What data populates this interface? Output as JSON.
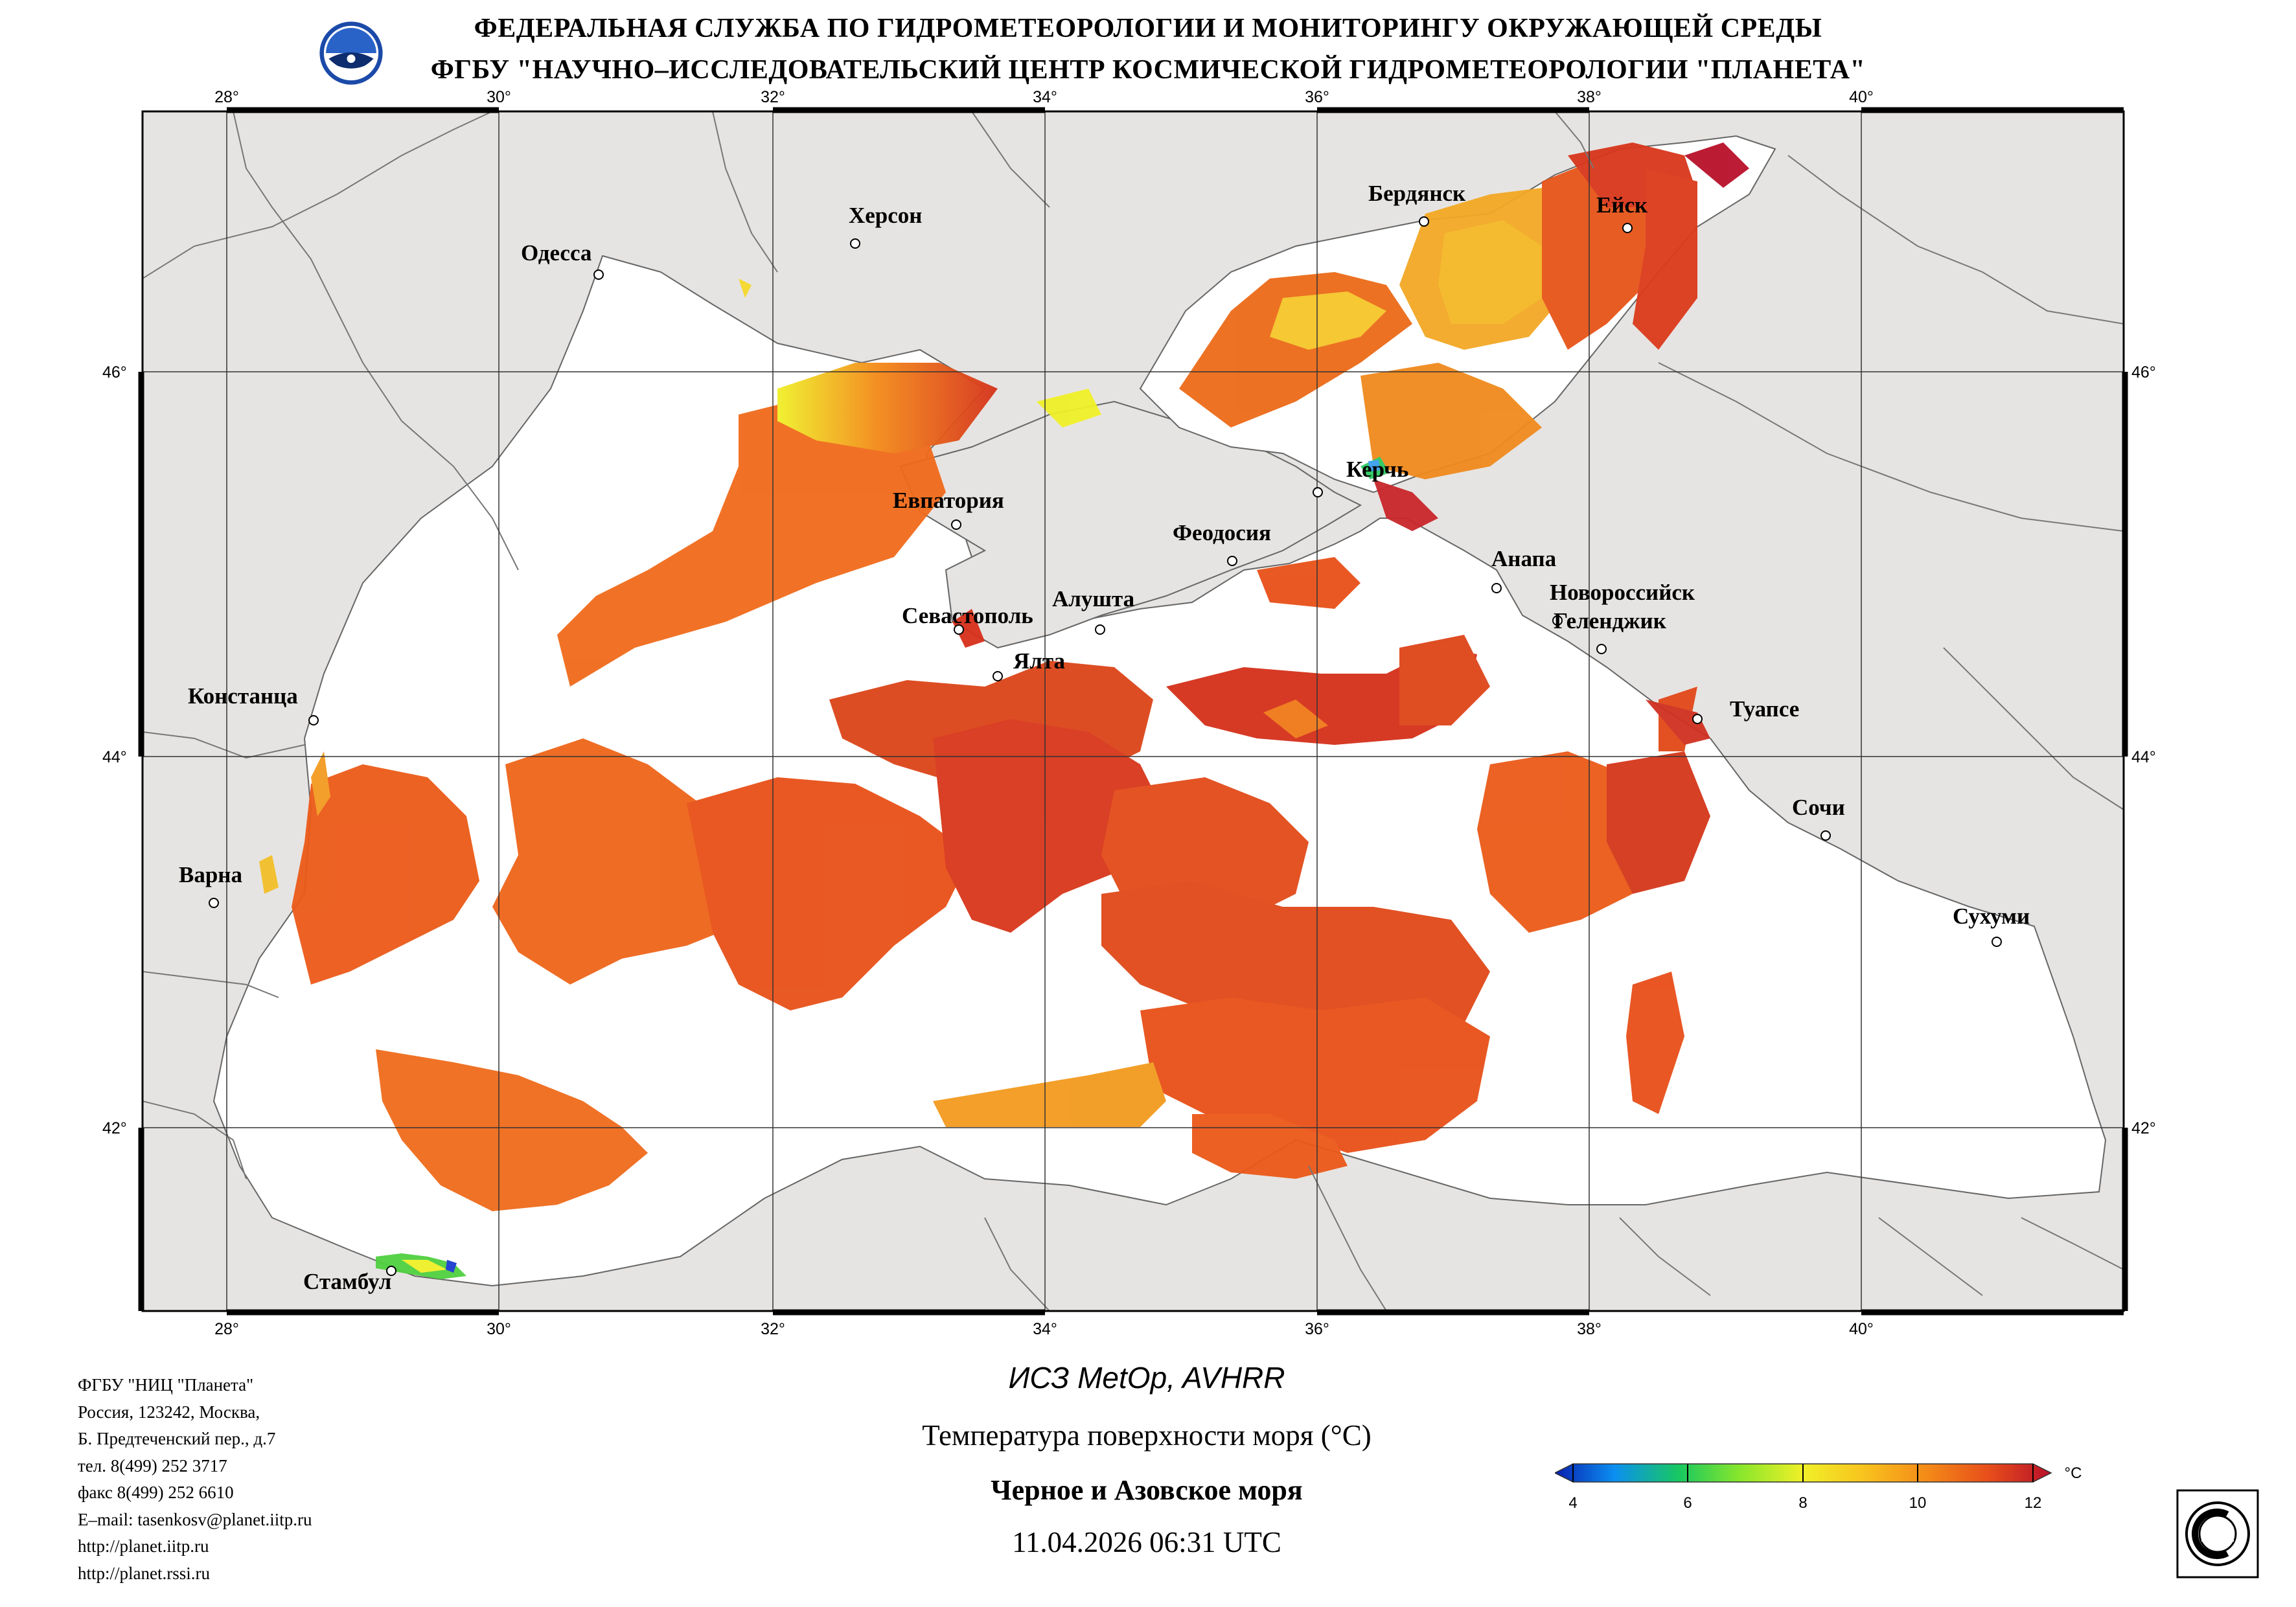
{
  "header": {
    "line1": "ФЕДЕРАЛЬНАЯ СЛУЖБА ПО ГИДРОМЕТЕОРОЛОГИИ И МОНИТОРИНГУ ОКРУЖАЮЩЕЙ СРЕДЫ",
    "line2": "ФГБУ \"НАУЧНО–ИССЛЕДОВАТЕЛЬСКИЙ ЦЕНТР КОСМИЧЕСКОЙ ГИДРОМЕТЕОРОЛОГИИ \"ПЛАНЕТА\"",
    "logo_icon": "planeta-logo-icon"
  },
  "map": {
    "lon_ticks": [
      "28°",
      "30°",
      "32°",
      "34°",
      "36°",
      "38°",
      "40°"
    ],
    "lat_ticks": [
      "46°",
      "44°",
      "42°"
    ],
    "cities": [
      {
        "name": "Херсон"
      },
      {
        "name": "Одесса"
      },
      {
        "name": "Бердянск"
      },
      {
        "name": "Ейск"
      },
      {
        "name": "Керчь"
      },
      {
        "name": "Евпатория"
      },
      {
        "name": "Феодосия"
      },
      {
        "name": "Анапа"
      },
      {
        "name": "Новороссийск"
      },
      {
        "name": "Геленджик"
      },
      {
        "name": "Севастополь"
      },
      {
        "name": "Алушта"
      },
      {
        "name": "Ялта"
      },
      {
        "name": "Констанца"
      },
      {
        "name": "Туапсе"
      },
      {
        "name": "Сочи"
      },
      {
        "name": "Варна"
      },
      {
        "name": "Сухуми"
      },
      {
        "name": "Стамбул"
      }
    ],
    "colors": {
      "land": "#e6e4e2",
      "sea_nodata": "#ffffff",
      "border": "#555555"
    }
  },
  "footer": {
    "org_lines": [
      "ФГБУ \"НИЦ \"Планета\"",
      "Россия, 123242, Москва,",
      "Б. Предтеченский пер., д.7",
      "тел. 8(499) 252 3717",
      "факс 8(499) 252 6610",
      "E–mail: tasenkosv@planet.iitp.ru",
      "http://planet.iitp.ru",
      "http://planet.rssi.ru"
    ],
    "satellite": "ИСЗ MetOp, AVHRR",
    "parameter": "Температура поверхности моря (°C)",
    "region": "Черное и Азовское моря",
    "datetime": "11.04.2026 06:31 UTC",
    "cert_icon": "iso-9001-certificate-icon"
  },
  "colorbar": {
    "unit": "°C",
    "min": 4,
    "max": 12,
    "ticks": [
      "4",
      "6",
      "8",
      "10",
      "12"
    ],
    "colors": [
      "#0a1fb0",
      "#0b8ff0",
      "#18c860",
      "#86e62c",
      "#f0f028",
      "#f8c41e",
      "#f48a18",
      "#e8501a",
      "#b8102a"
    ]
  }
}
